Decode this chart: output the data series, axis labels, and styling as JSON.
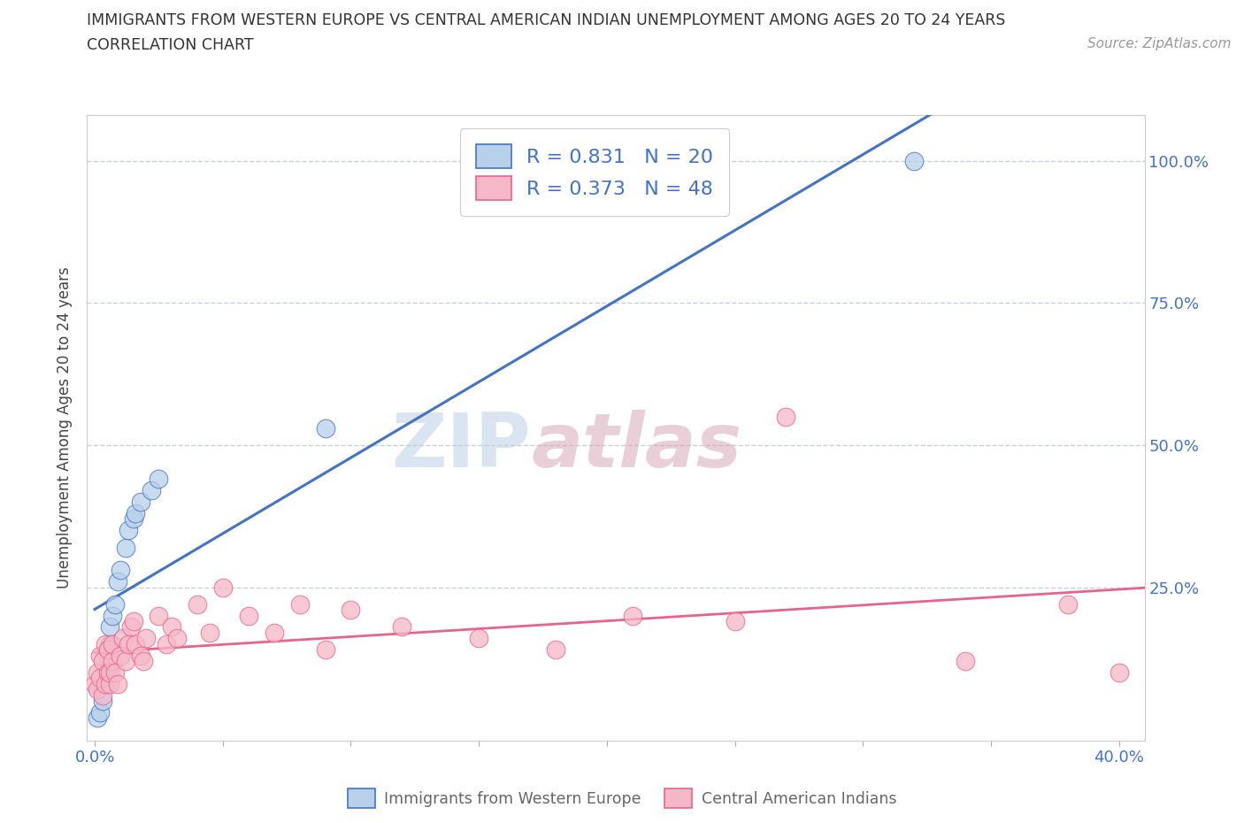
{
  "title": "IMMIGRANTS FROM WESTERN EUROPE VS CENTRAL AMERICAN INDIAN UNEMPLOYMENT AMONG AGES 20 TO 24 YEARS",
  "subtitle": "CORRELATION CHART",
  "source": "Source: ZipAtlas.com",
  "ylabel": "Unemployment Among Ages 20 to 24 years",
  "xlim": [
    -0.003,
    0.41
  ],
  "ylim": [
    -0.02,
    1.08
  ],
  "blue_R": 0.831,
  "blue_N": 20,
  "pink_R": 0.373,
  "pink_N": 48,
  "blue_color": "#b8d0ea",
  "pink_color": "#f5b8c8",
  "blue_line_color": "#4472C4",
  "pink_line_color": "#e8638a",
  "legend1": "Immigrants from Western Europe",
  "legend2": "Central American Indians",
  "grid_color": "#c8d0dc",
  "bg_color": "#ffffff",
  "plot_bg_color": "#ffffff",
  "blue_x": [
    0.001,
    0.002,
    0.003,
    0.004,
    0.005,
    0.006,
    0.006,
    0.007,
    0.008,
    0.009,
    0.01,
    0.012,
    0.013,
    0.015,
    0.016,
    0.018,
    0.022,
    0.025,
    0.09,
    0.32
  ],
  "blue_y": [
    0.02,
    0.03,
    0.05,
    0.08,
    0.12,
    0.15,
    0.18,
    0.2,
    0.22,
    0.26,
    0.28,
    0.32,
    0.35,
    0.37,
    0.38,
    0.4,
    0.42,
    0.44,
    0.53,
    1.0
  ],
  "pink_x": [
    0.0,
    0.001,
    0.001,
    0.002,
    0.002,
    0.003,
    0.003,
    0.004,
    0.004,
    0.005,
    0.005,
    0.006,
    0.006,
    0.007,
    0.007,
    0.008,
    0.009,
    0.01,
    0.011,
    0.012,
    0.013,
    0.014,
    0.015,
    0.016,
    0.018,
    0.019,
    0.02,
    0.025,
    0.028,
    0.03,
    0.032,
    0.04,
    0.045,
    0.05,
    0.06,
    0.07,
    0.08,
    0.09,
    0.1,
    0.12,
    0.15,
    0.18,
    0.21,
    0.25,
    0.27,
    0.34,
    0.38,
    0.4
  ],
  "pink_y": [
    0.08,
    0.07,
    0.1,
    0.09,
    0.13,
    0.06,
    0.12,
    0.08,
    0.15,
    0.1,
    0.14,
    0.08,
    0.1,
    0.12,
    0.15,
    0.1,
    0.08,
    0.13,
    0.16,
    0.12,
    0.15,
    0.18,
    0.19,
    0.15,
    0.13,
    0.12,
    0.16,
    0.2,
    0.15,
    0.18,
    0.16,
    0.22,
    0.17,
    0.25,
    0.2,
    0.17,
    0.22,
    0.14,
    0.21,
    0.18,
    0.16,
    0.14,
    0.2,
    0.19,
    0.55,
    0.12,
    0.22,
    0.1
  ],
  "watermark_zip": "ZIP",
  "watermark_atlas": "atlas"
}
